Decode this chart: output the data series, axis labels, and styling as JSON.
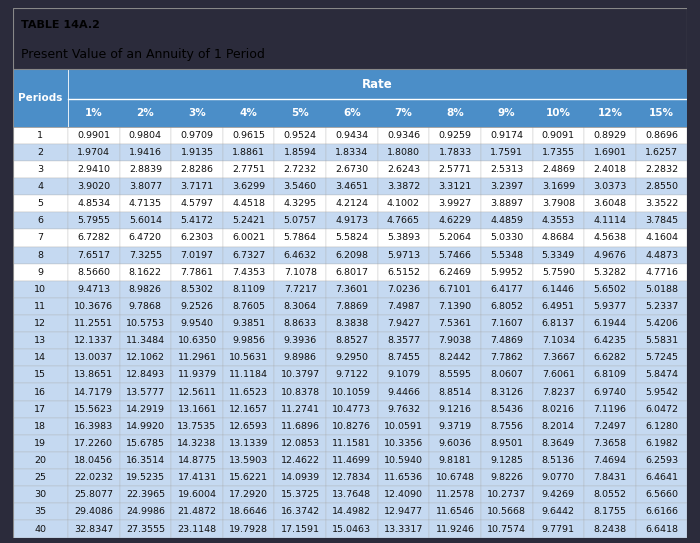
{
  "title_line1": "TABLE 14A.2",
  "title_line2": "Present Value of an Annuity of 1 Period",
  "rate_label": "Rate",
  "col_headers": [
    "Periods",
    "1%",
    "2%",
    "3%",
    "4%",
    "5%",
    "6%",
    "7%",
    "8%",
    "9%",
    "10%",
    "12%",
    "15%"
  ],
  "rows": [
    [
      1,
      0.9901,
      0.9804,
      0.9709,
      0.9615,
      0.9524,
      0.9434,
      0.9346,
      0.9259,
      0.9174,
      0.9091,
      0.8929,
      0.8696
    ],
    [
      2,
      1.9704,
      1.9416,
      1.9135,
      1.8861,
      1.8594,
      1.8334,
      1.808,
      1.7833,
      1.7591,
      1.7355,
      1.6901,
      1.6257
    ],
    [
      3,
      2.941,
      2.8839,
      2.8286,
      2.7751,
      2.7232,
      2.673,
      2.6243,
      2.5771,
      2.5313,
      2.4869,
      2.4018,
      2.2832
    ],
    [
      4,
      3.902,
      3.8077,
      3.7171,
      3.6299,
      3.546,
      3.4651,
      3.3872,
      3.3121,
      3.2397,
      3.1699,
      3.0373,
      2.855
    ],
    [
      5,
      4.8534,
      4.7135,
      4.5797,
      4.4518,
      4.3295,
      4.2124,
      4.1002,
      3.9927,
      3.8897,
      3.7908,
      3.6048,
      3.3522
    ],
    [
      6,
      5.7955,
      5.6014,
      5.4172,
      5.2421,
      5.0757,
      4.9173,
      4.7665,
      4.6229,
      4.4859,
      4.3553,
      4.1114,
      3.7845
    ],
    [
      7,
      6.7282,
      6.472,
      6.2303,
      6.0021,
      5.7864,
      5.5824,
      5.3893,
      5.2064,
      5.033,
      4.8684,
      4.5638,
      4.1604
    ],
    [
      8,
      7.6517,
      7.3255,
      7.0197,
      6.7327,
      6.4632,
      6.2098,
      5.9713,
      5.7466,
      5.5348,
      5.3349,
      4.9676,
      4.4873
    ],
    [
      9,
      8.566,
      8.1622,
      7.7861,
      7.4353,
      7.1078,
      6.8017,
      6.5152,
      6.2469,
      5.9952,
      5.759,
      5.3282,
      4.7716
    ],
    [
      10,
      9.4713,
      8.9826,
      8.5302,
      8.1109,
      7.7217,
      7.3601,
      7.0236,
      6.7101,
      6.4177,
      6.1446,
      5.6502,
      5.0188
    ],
    [
      11,
      10.3676,
      9.7868,
      9.2526,
      8.7605,
      8.3064,
      7.8869,
      7.4987,
      7.139,
      6.8052,
      6.4951,
      5.9377,
      5.2337
    ],
    [
      12,
      11.2551,
      10.5753,
      9.954,
      9.3851,
      8.8633,
      8.3838,
      7.9427,
      7.5361,
      7.1607,
      6.8137,
      6.1944,
      5.4206
    ],
    [
      13,
      12.1337,
      11.3484,
      10.635,
      9.9856,
      9.3936,
      8.8527,
      8.3577,
      7.9038,
      7.4869,
      7.1034,
      6.4235,
      5.5831
    ],
    [
      14,
      13.0037,
      12.1062,
      11.2961,
      10.5631,
      9.8986,
      9.295,
      8.7455,
      8.2442,
      7.7862,
      7.3667,
      6.6282,
      5.7245
    ],
    [
      15,
      13.8651,
      12.8493,
      11.9379,
      11.1184,
      10.3797,
      9.7122,
      9.1079,
      8.5595,
      8.0607,
      7.6061,
      6.8109,
      5.8474
    ],
    [
      16,
      14.7179,
      13.5777,
      12.5611,
      11.6523,
      10.8378,
      10.1059,
      9.4466,
      8.8514,
      8.3126,
      7.8237,
      6.974,
      5.9542
    ],
    [
      17,
      15.5623,
      14.2919,
      13.1661,
      12.1657,
      11.2741,
      10.4773,
      9.7632,
      9.1216,
      8.5436,
      8.0216,
      7.1196,
      6.0472
    ],
    [
      18,
      16.3983,
      14.992,
      13.7535,
      12.6593,
      11.6896,
      10.8276,
      10.0591,
      9.3719,
      8.7556,
      8.2014,
      7.2497,
      6.128
    ],
    [
      19,
      17.226,
      15.6785,
      14.3238,
      13.1339,
      12.0853,
      11.1581,
      10.3356,
      9.6036,
      8.9501,
      8.3649,
      7.3658,
      6.1982
    ],
    [
      20,
      18.0456,
      16.3514,
      14.8775,
      13.5903,
      12.4622,
      11.4699,
      10.594,
      9.8181,
      9.1285,
      8.5136,
      7.4694,
      6.2593
    ],
    [
      25,
      22.0232,
      19.5235,
      17.4131,
      15.6221,
      14.0939,
      12.7834,
      11.6536,
      10.6748,
      9.8226,
      9.077,
      7.8431,
      6.4641
    ],
    [
      30,
      25.8077,
      22.3965,
      19.6004,
      17.292,
      15.3725,
      13.7648,
      12.409,
      11.2578,
      10.2737,
      9.4269,
      8.0552,
      6.566
    ],
    [
      35,
      29.4086,
      24.9986,
      21.4872,
      18.6646,
      16.3742,
      14.4982,
      12.9477,
      11.6546,
      10.5668,
      9.6442,
      8.1755,
      6.6166
    ],
    [
      40,
      32.8347,
      27.3555,
      23.1148,
      19.7928,
      17.1591,
      15.0463,
      13.3317,
      11.9246,
      10.7574,
      9.7791,
      8.2438,
      6.6418
    ]
  ],
  "header_bg": "#4B8EC8",
  "header_text_color": "#FFFFFF",
  "rate_bg": "#4B8EC8",
  "rate_text_color": "#FFFFFF",
  "row_bg_white": "#FFFFFF",
  "row_bg_blue": "#C5D9F1",
  "title_bg": "#F0F0F0",
  "outer_bg": "#2B2B3B",
  "border_color": "#888888",
  "font_size_title1": 8,
  "font_size_title2": 9,
  "font_size_header": 7.5,
  "font_size_data": 6.8
}
